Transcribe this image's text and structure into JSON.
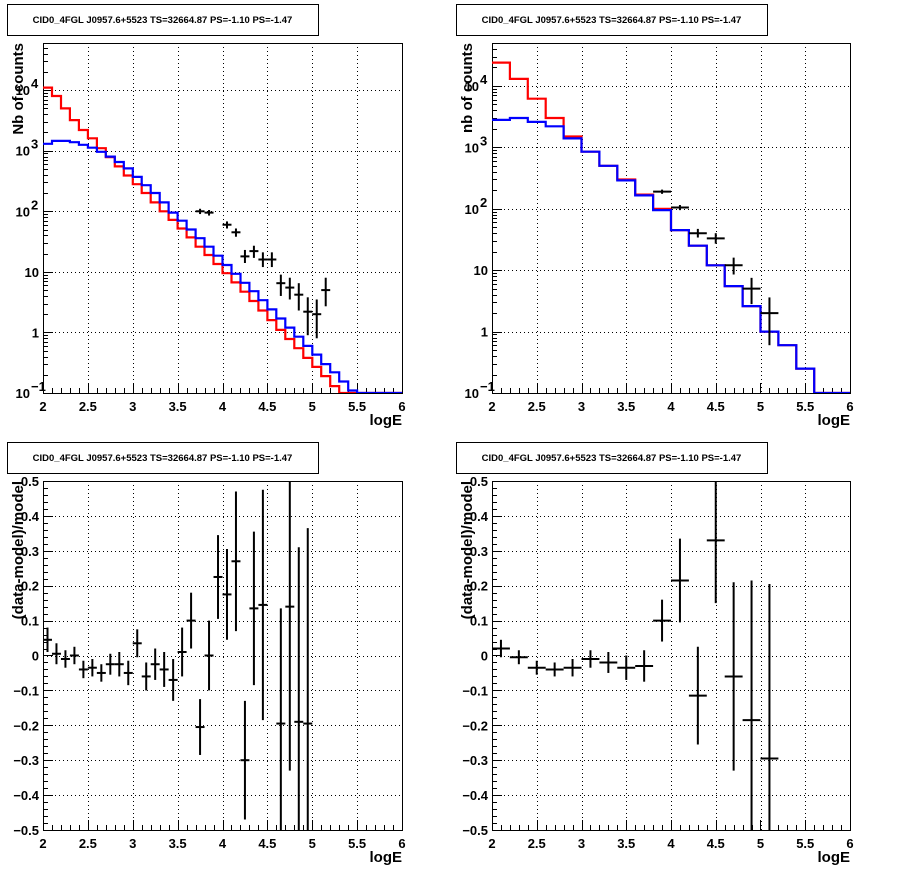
{
  "chart_data": [
    {
      "type": "line",
      "title": "CID0_4FGL J0957.6+5523 TS=32664.87 PS=-1.10 PS=-1.47",
      "xlabel": "logE",
      "ylabel": "Nb of counts",
      "xlim": [
        2,
        6
      ],
      "ylim": [
        0.1,
        60000
      ],
      "yscale": "log",
      "grid": true,
      "x_ticks": [
        "2",
        "2.5",
        "3",
        "3.5",
        "4",
        "4.5",
        "5",
        "5.5",
        "6"
      ],
      "y_ticks": [
        "10",
        "1",
        "10"
      ],
      "y_tick_exponents": [
        "-1",
        "",
        "",
        "2",
        "3",
        "4"
      ],
      "bin_edges": [
        2.0,
        2.1,
        2.2,
        2.3,
        2.4,
        2.5,
        2.6,
        2.7,
        2.8,
        2.9,
        3.0,
        3.1,
        3.2,
        3.3,
        3.4,
        3.5,
        3.6,
        3.7,
        3.8,
        3.9,
        4.0,
        4.1,
        4.2,
        4.3,
        4.4,
        4.5,
        4.6,
        4.7,
        4.8,
        4.9,
        5.0,
        5.1,
        5.2,
        5.3,
        5.4,
        5.5,
        5.6,
        5.7,
        5.8,
        5.9,
        6.0
      ],
      "series": [
        {
          "color": "#ff0000",
          "values": [
            11000,
            8000,
            5000,
            3200,
            2200,
            1600,
            1100,
            780,
            550,
            390,
            280,
            200,
            140,
            100,
            72,
            52,
            37,
            26,
            19,
            13.5,
            9.5,
            6.7,
            4.7,
            3.3,
            2.3,
            1.6,
            1.1,
            0.78,
            0.55,
            0.38,
            0.27,
            0.19,
            0.13,
            0.1,
            0.1,
            0.1,
            0.1,
            0.1,
            0.1,
            0.1
          ]
        },
        {
          "color": "#0000ff",
          "values": [
            1300,
            1450,
            1450,
            1380,
            1250,
            1120,
            960,
            800,
            650,
            510,
            370,
            270,
            200,
            140,
            95,
            70,
            50,
            36,
            26,
            18.5,
            13,
            9.3,
            6.6,
            4.8,
            3.4,
            2.4,
            1.7,
            1.2,
            0.85,
            0.6,
            0.43,
            0.3,
            0.22,
            0.155,
            0.11,
            0.1,
            0.1,
            0.1,
            0.1,
            0.1
          ]
        }
      ],
      "points": [
        {
          "x": 3.75,
          "y": 100,
          "lo": 90,
          "hi": 110
        },
        {
          "x": 3.85,
          "y": 95,
          "lo": 85,
          "hi": 105
        },
        {
          "x": 4.05,
          "y": 60,
          "lo": 52,
          "hi": 68
        },
        {
          "x": 4.15,
          "y": 45,
          "lo": 38,
          "hi": 52
        },
        {
          "x": 4.25,
          "y": 18,
          "lo": 14,
          "hi": 23
        },
        {
          "x": 4.35,
          "y": 22,
          "lo": 17,
          "hi": 27
        },
        {
          "x": 4.45,
          "y": 16,
          "lo": 12,
          "hi": 21
        },
        {
          "x": 4.55,
          "y": 16,
          "lo": 12,
          "hi": 21
        },
        {
          "x": 4.65,
          "y": 6.5,
          "lo": 4,
          "hi": 9
        },
        {
          "x": 4.75,
          "y": 5.5,
          "lo": 3.5,
          "hi": 8
        },
        {
          "x": 4.85,
          "y": 4.2,
          "lo": 2.3,
          "hi": 6.5
        },
        {
          "x": 4.95,
          "y": 2.2,
          "lo": 0.9,
          "hi": 3.8
        },
        {
          "x": 5.05,
          "y": 2,
          "lo": 0.8,
          "hi": 3.5
        },
        {
          "x": 5.15,
          "y": 5,
          "lo": 2.7,
          "hi": 8
        }
      ]
    },
    {
      "type": "line",
      "title": "CID0_4FGL J0957.6+5523 TS=32664.87 PS=-1.10 PS=-1.47",
      "xlabel": "logE",
      "ylabel": "nb of counts",
      "xlim": [
        2,
        6
      ],
      "ylim": [
        0.1,
        50000
      ],
      "yscale": "log",
      "grid": true,
      "x_ticks": [
        "2",
        "2.5",
        "3",
        "3.5",
        "4",
        "4.5",
        "5",
        "5.5",
        "6"
      ],
      "bin_edges": [
        2.0,
        2.2,
        2.4,
        2.6,
        2.8,
        3.0,
        3.2,
        3.4,
        3.6,
        3.8,
        4.0,
        4.2,
        4.4,
        4.6,
        4.8,
        5.0,
        5.2,
        5.4,
        5.6,
        5.8,
        6.0
      ],
      "series": [
        {
          "color": "#ff0000",
          "values": [
            24000,
            13000,
            6200,
            3000,
            1500,
            850,
            500,
            300,
            170,
            100,
            45,
            25,
            12,
            5.5,
            2.6,
            1,
            0.6,
            0.25,
            0.1,
            0.1
          ]
        },
        {
          "color": "#0000ff",
          "values": [
            2800,
            3000,
            2600,
            2200,
            1400,
            850,
            500,
            290,
            165,
            95,
            45,
            25,
            12,
            5.5,
            2.6,
            1,
            0.6,
            0.25,
            0.1,
            0.1
          ]
        }
      ],
      "points": [
        {
          "x": 3.9,
          "y": 190,
          "lo": 175,
          "hi": 205
        },
        {
          "x": 4.1,
          "y": 105,
          "lo": 95,
          "hi": 115
        },
        {
          "x": 4.3,
          "y": 40,
          "lo": 34,
          "hi": 47
        },
        {
          "x": 4.5,
          "y": 33,
          "lo": 27,
          "hi": 40
        },
        {
          "x": 4.7,
          "y": 12,
          "lo": 8.5,
          "hi": 16
        },
        {
          "x": 4.9,
          "y": 5,
          "lo": 2.8,
          "hi": 7.5
        },
        {
          "x": 5.1,
          "y": 2,
          "lo": 0.6,
          "hi": 3.6
        }
      ]
    },
    {
      "type": "scatter",
      "title": "CID0_4FGL J0957.6+5523 TS=32664.87 PS=-1.10 PS=-1.47",
      "xlabel": "logE",
      "ylabel": "(data-model)/model",
      "xlim": [
        2,
        6
      ],
      "ylim": [
        -0.5,
        0.5
      ],
      "grid": true,
      "x_ticks": [
        "2",
        "2.5",
        "3",
        "3.5",
        "4",
        "4.5",
        "5",
        "5.5",
        "6"
      ],
      "y_ticks": [
        "-0.5",
        "-0.4",
        "-0.3",
        "-0.2",
        "-0.1",
        "0",
        "0.1",
        "0.2",
        "0.3",
        "0.4",
        "0.5"
      ],
      "points": [
        {
          "x": 2.05,
          "y": 0.045,
          "err": 0.035
        },
        {
          "x": 2.15,
          "y": 0.005,
          "err": 0.03
        },
        {
          "x": 2.25,
          "y": -0.01,
          "err": 0.025
        },
        {
          "x": 2.35,
          "y": 0.0,
          "err": 0.025
        },
        {
          "x": 2.45,
          "y": -0.04,
          "err": 0.025
        },
        {
          "x": 2.55,
          "y": -0.035,
          "err": 0.025
        },
        {
          "x": 2.65,
          "y": -0.05,
          "err": 0.025
        },
        {
          "x": 2.75,
          "y": -0.025,
          "err": 0.03
        },
        {
          "x": 2.85,
          "y": -0.025,
          "err": 0.035
        },
        {
          "x": 2.95,
          "y": -0.05,
          "err": 0.035
        },
        {
          "x": 3.05,
          "y": 0.035,
          "err": 0.04
        },
        {
          "x": 3.15,
          "y": -0.06,
          "err": 0.04
        },
        {
          "x": 3.25,
          "y": -0.025,
          "err": 0.045
        },
        {
          "x": 3.35,
          "y": -0.04,
          "err": 0.05
        },
        {
          "x": 3.45,
          "y": -0.07,
          "err": 0.06
        },
        {
          "x": 3.55,
          "y": 0.01,
          "err": 0.07
        },
        {
          "x": 3.65,
          "y": 0.1,
          "err": 0.08
        },
        {
          "x": 3.75,
          "y": -0.205,
          "err": 0.08
        },
        {
          "x": 3.85,
          "y": 0.0,
          "err": 0.1
        },
        {
          "x": 3.95,
          "y": 0.225,
          "err": 0.12
        },
        {
          "x": 4.05,
          "y": 0.175,
          "err": 0.13
        },
        {
          "x": 4.15,
          "y": 0.27,
          "err": 0.2
        },
        {
          "x": 4.25,
          "y": -0.3,
          "err": 0.17
        },
        {
          "x": 4.35,
          "y": 0.135,
          "err": 0.22
        },
        {
          "x": 4.45,
          "y": 0.145,
          "err": 0.33
        },
        {
          "x": 4.65,
          "y": -0.195,
          "err": 0.33
        },
        {
          "x": 4.75,
          "y": 0.14,
          "err": 0.47
        },
        {
          "x": 4.85,
          "y": -0.19,
          "err": 0.5
        },
        {
          "x": 4.95,
          "y": -0.195,
          "err": 0.56
        }
      ]
    },
    {
      "type": "scatter",
      "title": "CID0_4FGL J0957.6+5523 TS=32664.87 PS=-1.10 PS=-1.47",
      "xlabel": "logE",
      "ylabel": "(data-model)/model",
      "xlim": [
        2,
        6
      ],
      "ylim": [
        -0.5,
        0.5
      ],
      "grid": true,
      "x_ticks": [
        "2",
        "2.5",
        "3",
        "3.5",
        "4",
        "4.5",
        "5",
        "5.5",
        "6"
      ],
      "y_ticks": [
        "-0.5",
        "-0.4",
        "-0.3",
        "-0.2",
        "-0.1",
        "0",
        "0.1",
        "0.2",
        "0.3",
        "0.4",
        "0.5"
      ],
      "points": [
        {
          "x": 2.1,
          "y": 0.02,
          "err": 0.025
        },
        {
          "x": 2.3,
          "y": -0.005,
          "err": 0.02
        },
        {
          "x": 2.5,
          "y": -0.035,
          "err": 0.02
        },
        {
          "x": 2.7,
          "y": -0.04,
          "err": 0.02
        },
        {
          "x": 2.9,
          "y": -0.035,
          "err": 0.025
        },
        {
          "x": 3.1,
          "y": -0.01,
          "err": 0.025
        },
        {
          "x": 3.3,
          "y": -0.02,
          "err": 0.03
        },
        {
          "x": 3.5,
          "y": -0.035,
          "err": 0.035
        },
        {
          "x": 3.7,
          "y": -0.03,
          "err": 0.045
        },
        {
          "x": 3.9,
          "y": 0.1,
          "err": 0.06
        },
        {
          "x": 4.1,
          "y": 0.215,
          "err": 0.12
        },
        {
          "x": 4.3,
          "y": -0.115,
          "err": 0.14
        },
        {
          "x": 4.5,
          "y": 0.33,
          "err": 0.18
        },
        {
          "x": 4.7,
          "y": -0.06,
          "err": 0.27
        },
        {
          "x": 4.9,
          "y": -0.185,
          "err": 0.4
        },
        {
          "x": 5.1,
          "y": -0.295,
          "err": 0.5
        }
      ]
    }
  ]
}
